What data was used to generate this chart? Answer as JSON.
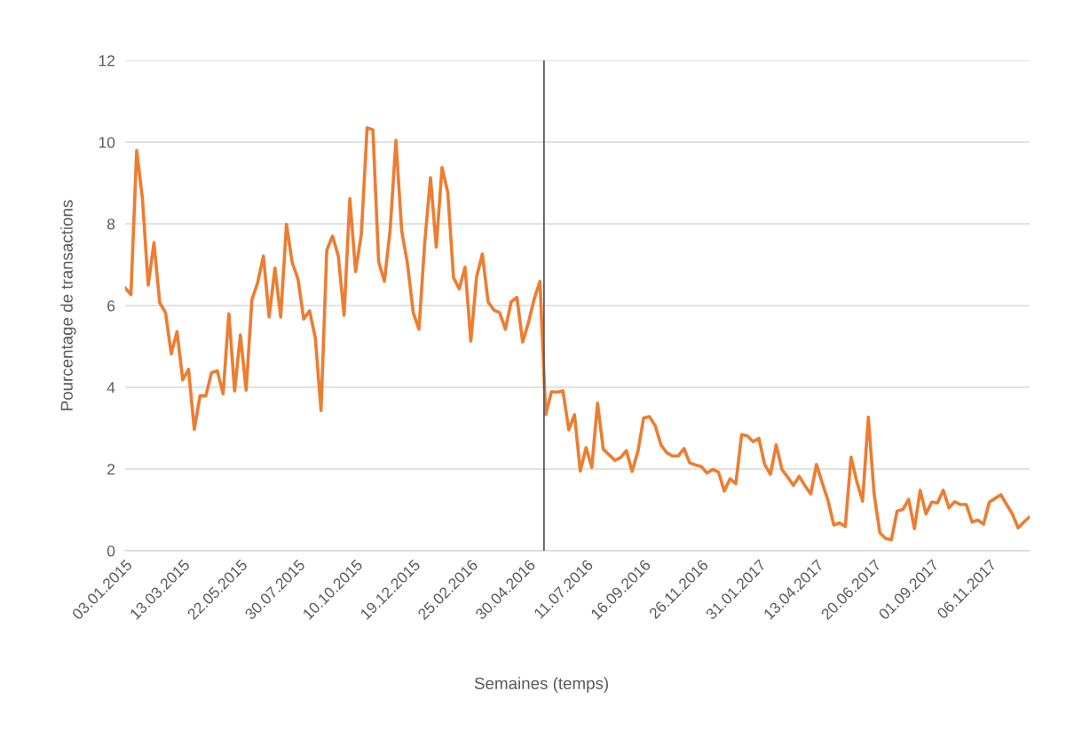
{
  "chart_data": {
    "type": "line",
    "xlabel": "Semaines (temps)",
    "ylabel": "Pourcentage de transactions",
    "categories": [
      "03.01.2015",
      null,
      null,
      null,
      null,
      null,
      null,
      null,
      null,
      null,
      "13.03.2015",
      null,
      null,
      null,
      null,
      null,
      null,
      null,
      null,
      null,
      "22.05.2015",
      null,
      null,
      null,
      null,
      null,
      null,
      null,
      null,
      null,
      "30.07.2015",
      null,
      null,
      null,
      null,
      null,
      null,
      null,
      null,
      null,
      "10.10.2015",
      null,
      null,
      null,
      null,
      null,
      null,
      null,
      null,
      null,
      "19.12.2015",
      null,
      null,
      null,
      null,
      null,
      null,
      null,
      null,
      null,
      "25.02.2016",
      null,
      null,
      null,
      null,
      null,
      null,
      null,
      null,
      null,
      "30.04.2016",
      null,
      null,
      null,
      null,
      null,
      null,
      null,
      null,
      null,
      "11.07.2016",
      null,
      null,
      null,
      null,
      null,
      null,
      null,
      null,
      null,
      "16.09.2016",
      null,
      null,
      null,
      null,
      null,
      null,
      null,
      null,
      null,
      "26.11.2016",
      null,
      null,
      null,
      null,
      null,
      null,
      null,
      null,
      null,
      "31.01.2017",
      null,
      null,
      null,
      null,
      null,
      null,
      null,
      null,
      null,
      "13.04.2017",
      null,
      null,
      null,
      null,
      null,
      null,
      null,
      null,
      null,
      "20.06.2017",
      null,
      null,
      null,
      null,
      null,
      null,
      null,
      null,
      null,
      "01.09.2017",
      null,
      null,
      null,
      null,
      null,
      null,
      null,
      null,
      null,
      "06.11.2017",
      null,
      null,
      null,
      null,
      null,
      null,
      null
    ],
    "series": [
      {
        "color": "#ed7d31",
        "values": [
          6.43,
          6.27,
          9.8,
          8.62,
          6.5,
          7.54,
          6.07,
          5.83,
          4.82,
          5.36,
          4.18,
          4.44,
          2.97,
          3.79,
          3.79,
          4.36,
          4.4,
          3.84,
          5.8,
          3.91,
          5.28,
          3.93,
          6.14,
          6.56,
          7.21,
          5.72,
          6.92,
          5.72,
          7.99,
          7.05,
          6.65,
          5.67,
          5.87,
          5.22,
          3.43,
          7.36,
          7.7,
          7.21,
          5.76,
          8.62,
          6.83,
          7.75,
          10.35,
          10.3,
          7.07,
          6.59,
          7.86,
          10.04,
          7.83,
          7.03,
          5.83,
          5.42,
          7.54,
          9.13,
          7.43,
          9.38,
          8.77,
          6.68,
          6.41,
          6.94,
          5.13,
          6.7,
          7.26,
          6.09,
          5.89,
          5.83,
          5.42,
          6.09,
          6.2,
          5.11,
          5.58,
          6.16,
          6.59,
          3.33,
          3.89,
          3.88,
          3.91,
          2.96,
          3.33,
          1.95,
          2.52,
          2.04,
          3.61,
          2.48,
          2.35,
          2.21,
          2.28,
          2.45,
          1.94,
          2.43,
          3.25,
          3.28,
          3.06,
          2.59,
          2.4,
          2.32,
          2.32,
          2.5,
          2.15,
          2.1,
          2.06,
          1.9,
          1.99,
          1.92,
          1.46,
          1.76,
          1.64,
          2.84,
          2.81,
          2.67,
          2.75,
          2.11,
          1.87,
          2.59,
          1.99,
          1.8,
          1.6,
          1.82,
          1.59,
          1.39,
          2.11,
          1.66,
          1.23,
          0.63,
          0.68,
          0.59,
          2.29,
          1.69,
          1.21,
          3.27,
          1.39,
          0.44,
          0.3,
          0.27,
          0.97,
          1.01,
          1.26,
          0.54,
          1.48,
          0.9,
          1.19,
          1.17,
          1.48,
          1.05,
          1.2,
          1.13,
          1.13,
          0.7,
          0.75,
          0.65,
          1.19,
          1.28,
          1.37,
          1.13,
          0.9,
          0.56,
          0.7,
          0.83
        ]
      }
    ],
    "ylim": [
      0,
      12
    ],
    "yticks": [
      0,
      2,
      4,
      6,
      8,
      10,
      12
    ],
    "grid": "y"
  }
}
